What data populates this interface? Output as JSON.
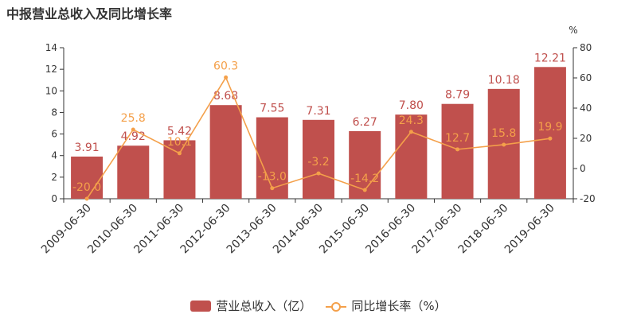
{
  "chart_data": {
    "type": "bar",
    "title": "中报营业总收入及同比增长率",
    "categories": [
      "2009-06-30",
      "2010-06-30",
      "2011-06-30",
      "2012-06-30",
      "2013-06-30",
      "2014-06-30",
      "2015-06-30",
      "2016-06-30",
      "2017-06-30",
      "2018-06-30",
      "2019-06-30"
    ],
    "series": [
      {
        "name": "营业总收入（亿）",
        "type": "bar",
        "axis": "left",
        "values": [
          3.91,
          4.92,
          5.42,
          8.68,
          7.55,
          7.31,
          6.27,
          7.8,
          8.79,
          10.18,
          12.21
        ],
        "labels": [
          "3.91",
          "4.92",
          "5.42",
          "8.68",
          "7.55",
          "7.31",
          "6.27",
          "7.80",
          "8.79",
          "10.18",
          "12.21"
        ]
      },
      {
        "name": "同比增长率（%）",
        "type": "line",
        "axis": "right",
        "values": [
          -20.0,
          25.8,
          10.1,
          60.3,
          -13.0,
          -3.2,
          -14.2,
          24.3,
          12.7,
          15.8,
          19.9
        ],
        "labels": [
          "-20.0",
          "25.8",
          "10.1",
          "60.3",
          "-13.0",
          "-3.2",
          "-14.2",
          "24.3",
          "12.7",
          "15.8",
          "19.9"
        ]
      }
    ],
    "y_left": {
      "min": 0,
      "max": 14,
      "ticks": [
        "0",
        "2",
        "4",
        "6",
        "8",
        "10",
        "12",
        "14"
      ]
    },
    "y_right": {
      "min": -20,
      "max": 80,
      "unit": "%",
      "ticks": [
        "-20",
        "0",
        "20",
        "40",
        "60",
        "80"
      ]
    },
    "grid": false,
    "legend_position": "bottom-center",
    "colors": {
      "bar": "#c0504d",
      "line": "#f4a04a",
      "bar_label": "#c0504d",
      "line_label": "#f4a04a",
      "axis": "#333333"
    }
  }
}
